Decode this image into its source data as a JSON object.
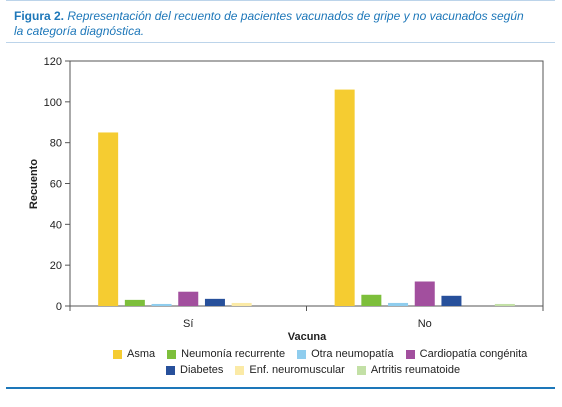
{
  "caption": {
    "label": "Figura 2.",
    "text": "Representación del recuento de pacientes vacunados de gripe y no vacunados según la categoría diagnóstica."
  },
  "chart_data": {
    "type": "bar",
    "categories": [
      "Sí",
      "No"
    ],
    "xlabel": "Vacuna",
    "ylabel": "Recuento",
    "ylim": [
      0,
      120
    ],
    "yticks": [
      0,
      20,
      40,
      60,
      80,
      100,
      120
    ],
    "grid": false,
    "legend_placement": "bottom",
    "series": [
      {
        "name": "Asma",
        "color": "#f5cc31",
        "values": [
          85,
          106
        ]
      },
      {
        "name": "Neumonía recurrente",
        "color": "#7dbf3b",
        "values": [
          3,
          5.5
        ]
      },
      {
        "name": "Otra neumopatía",
        "color": "#8fcdee",
        "values": [
          1,
          1.5
        ]
      },
      {
        "name": "Cardiopatía congénita",
        "color": "#a24f9e",
        "values": [
          7,
          12
        ]
      },
      {
        "name": "Diabetes",
        "color": "#27509b",
        "values": [
          3.5,
          5
        ]
      },
      {
        "name": "Enf. neuromuscular",
        "color": "#fbeaa6",
        "values": [
          1.5,
          0
        ]
      },
      {
        "name": "Artritis reumatoide",
        "color": "#c3e0a6",
        "values": [
          0,
          1
        ]
      }
    ]
  }
}
